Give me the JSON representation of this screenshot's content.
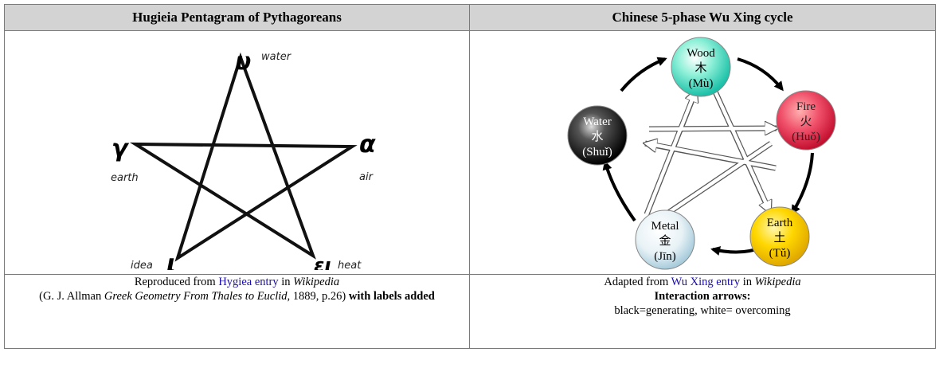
{
  "left": {
    "header": "Hugieia Pentagram of Pythagoreans",
    "figure": {
      "letters": {
        "top": "υ",
        "right": "α",
        "bottom_right": "ει",
        "bottom_left": "ι",
        "left": "γ"
      },
      "labels": {
        "top": "water",
        "right": "air",
        "bottom_right": "heat",
        "bottom_left": "idea",
        "left": "earth"
      }
    },
    "caption": {
      "line1_prefix": "Reproduced from ",
      "link_text": "Hygiea entry",
      "line1_mid": " in ",
      "line1_source": "Wikipedia",
      "line2_open": "(G. J. Allman ",
      "line2_book": "Greek Geometry From Thales to Euclid",
      "line2_rest": ", 1889, p.26) ",
      "line2_bold": "with labels added"
    }
  },
  "right": {
    "header": "Chinese 5-phase Wu Xing cycle",
    "figure": {
      "phases": [
        {
          "id": "wood",
          "en": "Wood",
          "zh": "木",
          "pinyin": "(Mù)",
          "color": "#40d8b8"
        },
        {
          "id": "fire",
          "en": "Fire",
          "zh": "火",
          "pinyin": "(Huǒ)",
          "color": "#e8304a"
        },
        {
          "id": "earth",
          "en": "Earth",
          "zh": "土",
          "pinyin": "(Tǔ)",
          "color": "#f2c200"
        },
        {
          "id": "metal",
          "en": "Metal",
          "zh": "金",
          "pinyin": "(Jīn)",
          "color": "#cfe4ee"
        },
        {
          "id": "water",
          "en": "Water",
          "zh": "水",
          "pinyin": "(Shuǐ)",
          "color": "#222222"
        }
      ]
    },
    "caption": {
      "line1_prefix": "Adapted from ",
      "link_text": "Wu Xing entry",
      "line1_mid": " in ",
      "line1_source": "Wikipedia",
      "line2": "Interaction arrows:",
      "line3": "black=generating, white= overcoming"
    }
  }
}
